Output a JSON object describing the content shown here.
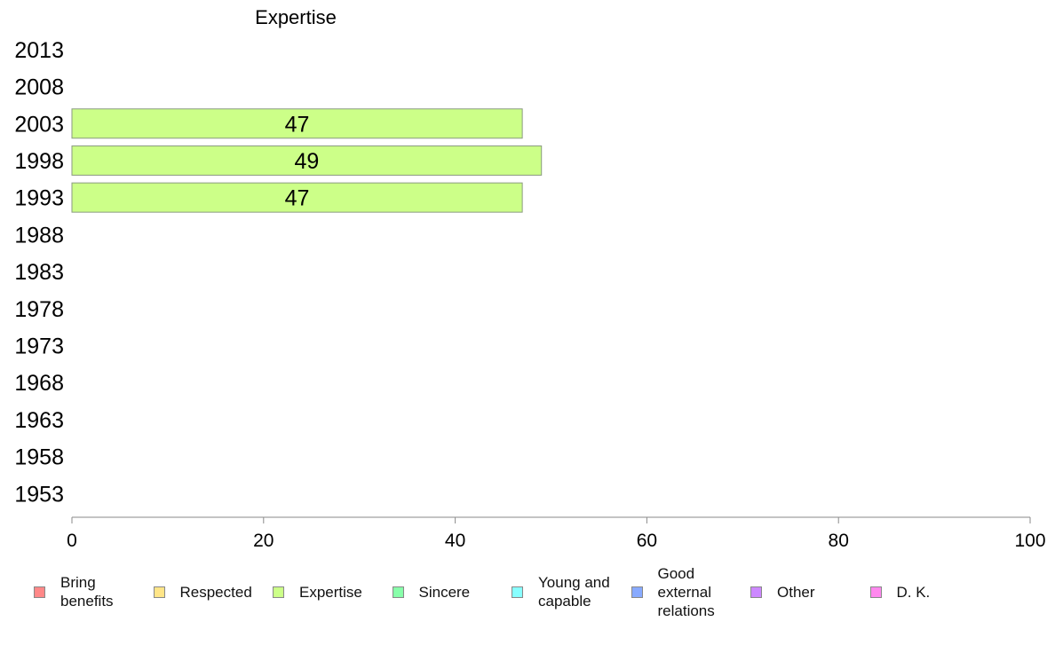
{
  "chart_data": {
    "type": "bar",
    "orientation": "horizontal",
    "title": "Expertise",
    "categories": [
      "2013",
      "2008",
      "2003",
      "1998",
      "1993",
      "1988",
      "1983",
      "1978",
      "1973",
      "1968",
      "1963",
      "1958",
      "1953"
    ],
    "series": [
      {
        "name": "Expertise",
        "color": "#ccff88",
        "values": [
          null,
          null,
          47,
          49,
          47,
          null,
          null,
          null,
          null,
          null,
          null,
          null,
          null
        ]
      }
    ],
    "xlim": [
      0,
      100
    ],
    "xticks": [
      "0",
      "20",
      "40",
      "60",
      "80",
      "100"
    ],
    "grid": false,
    "legend_position": "bottom",
    "legend": [
      {
        "label": "Bring benefits",
        "color": "#ff8888"
      },
      {
        "label": "Respected",
        "color": "#ffe588"
      },
      {
        "label": "Expertise",
        "color": "#ccff88"
      },
      {
        "label": "Sincere",
        "color": "#88ffaa"
      },
      {
        "label": "Young and capable",
        "color": "#88ffff"
      },
      {
        "label": "Good external relations",
        "color": "#88aaff"
      },
      {
        "label": "Other",
        "color": "#cc88ff"
      },
      {
        "label": "D. K.",
        "color": "#ff88ee"
      }
    ]
  }
}
